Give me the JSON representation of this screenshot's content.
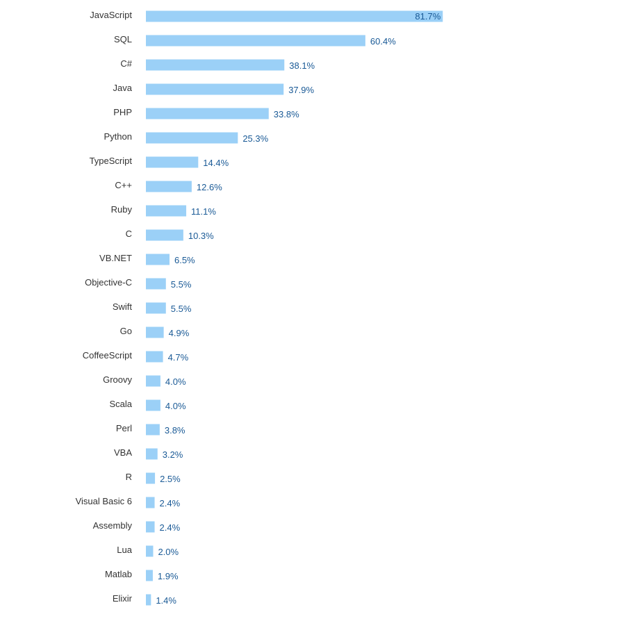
{
  "chart_data": {
    "type": "bar",
    "orientation": "horizontal",
    "title": "",
    "xlabel": "",
    "ylabel": "",
    "xlim": [
      0,
      100
    ],
    "grid": false,
    "legend": "none",
    "bar_color": "#9bd0f7",
    "value_label_color": "#1a5a96",
    "category_label_color": "#333333",
    "categories": [
      "JavaScript",
      "SQL",
      "C#",
      "Java",
      "PHP",
      "Python",
      "TypeScript",
      "C++",
      "Ruby",
      "C",
      "VB.NET",
      "Objective-C",
      "Swift",
      "Go",
      "CoffeeScript",
      "Groovy",
      "Scala",
      "Perl",
      "VBA",
      "R",
      "Visual Basic 6",
      "Assembly",
      "Lua",
      "Matlab",
      "Elixir"
    ],
    "values": [
      81.7,
      60.4,
      38.1,
      37.9,
      33.8,
      25.3,
      14.4,
      12.6,
      11.1,
      10.3,
      6.5,
      5.5,
      5.5,
      4.9,
      4.7,
      4.0,
      4.0,
      3.8,
      3.2,
      2.5,
      2.4,
      2.4,
      2.0,
      1.9,
      1.4
    ],
    "value_labels": [
      "81.7%",
      "60.4%",
      "38.1%",
      "37.9%",
      "33.8%",
      "25.3%",
      "14.4%",
      "12.6%",
      "11.1%",
      "10.3%",
      "6.5%",
      "5.5%",
      "5.5%",
      "4.9%",
      "4.7%",
      "4.0%",
      "4.0%",
      "3.8%",
      "3.2%",
      "2.5%",
      "2.4%",
      "2.4%",
      "2.0%",
      "1.9%",
      "1.4%"
    ]
  }
}
